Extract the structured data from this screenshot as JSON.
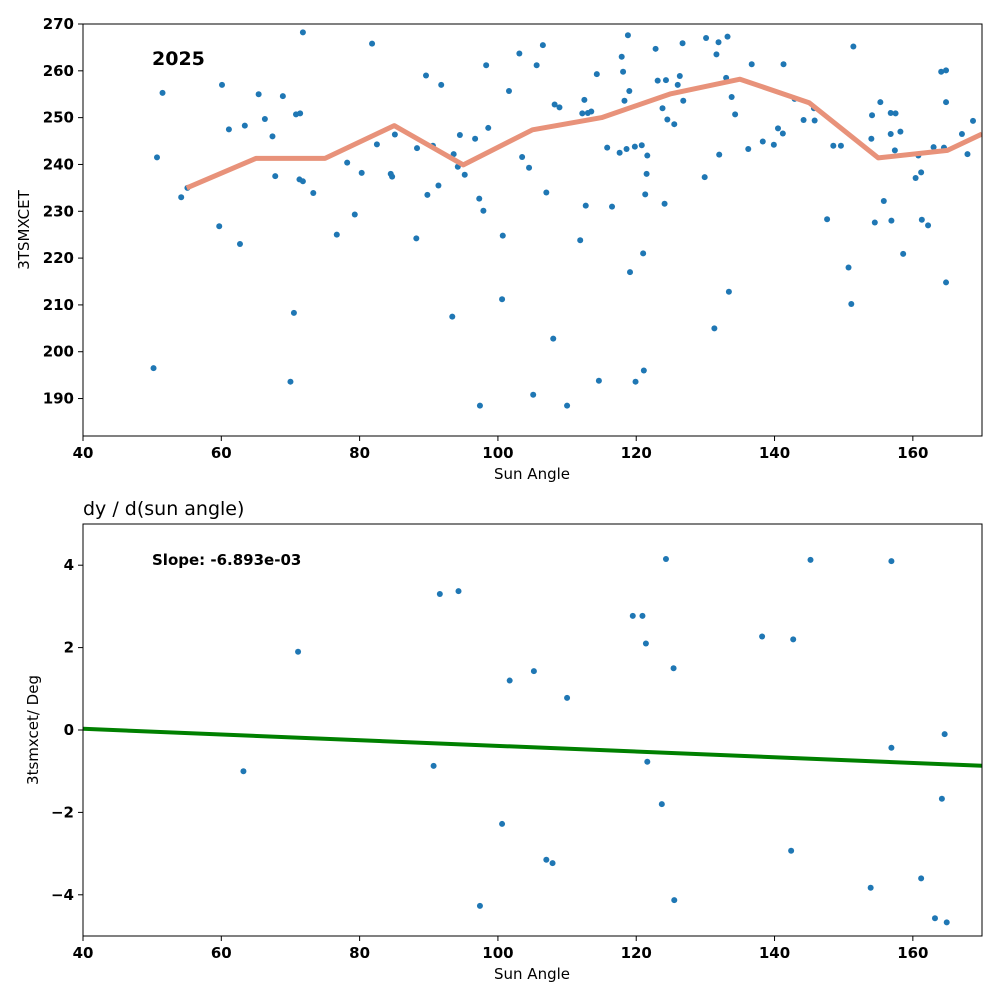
{
  "chart_data": [
    {
      "type": "scatter",
      "title": "",
      "annotation": "2025",
      "xlabel": "Sun Angle",
      "ylabel": "3TSMXCET",
      "xlim": [
        40,
        170
      ],
      "ylim": [
        182,
        270
      ],
      "xticks": [
        "40",
        "60",
        "80",
        "100",
        "120",
        "140",
        "160"
      ],
      "yticks": [
        "190",
        "200",
        "210",
        "220",
        "230",
        "240",
        "250",
        "260",
        "270"
      ],
      "colors": {
        "points": "#1f77b4",
        "trend": "#e8927a"
      },
      "series": [
        {
          "type": "scatter",
          "points": [
            [
              50.2,
              196.5
            ],
            [
              50.7,
              241.5
            ],
            [
              51.5,
              255.3
            ],
            [
              54.2,
              233
            ],
            [
              55.1,
              235
            ],
            [
              59.7,
              226.8
            ],
            [
              60.1,
              257
            ],
            [
              61.1,
              247.5
            ],
            [
              62.7,
              223
            ],
            [
              63.4,
              248.3
            ],
            [
              65.4,
              255
            ],
            [
              66.3,
              249.7
            ],
            [
              67.4,
              246
            ],
            [
              67.8,
              237.5
            ],
            [
              68.9,
              254.6
            ],
            [
              70,
              193.6
            ],
            [
              70.5,
              208.3
            ],
            [
              70.8,
              250.7
            ],
            [
              71.3,
              236.8
            ],
            [
              71.4,
              250.9
            ],
            [
              71.8,
              236.4
            ],
            [
              71.8,
              268.2
            ],
            [
              73.3,
              233.9
            ],
            [
              76.7,
              225
            ],
            [
              78.2,
              240.4
            ],
            [
              79.3,
              229.3
            ],
            [
              80.3,
              238.2
            ],
            [
              81.8,
              265.8
            ],
            [
              82.5,
              244.3
            ],
            [
              84.5,
              238
            ],
            [
              84.7,
              237.4
            ],
            [
              85.1,
              246.4
            ],
            [
              88.2,
              224.2
            ],
            [
              88.3,
              243.5
            ],
            [
              89.6,
              259
            ],
            [
              89.8,
              233.5
            ],
            [
              90.6,
              244
            ],
            [
              91.4,
              235.5
            ],
            [
              91.8,
              257
            ],
            [
              93.4,
              207.5
            ],
            [
              93.6,
              242.2
            ],
            [
              94.2,
              239.5
            ],
            [
              94.5,
              246.3
            ],
            [
              95.2,
              237.8
            ],
            [
              96.7,
              245.5
            ],
            [
              97.3,
              232.7
            ],
            [
              97.4,
              188.5
            ],
            [
              97.9,
              230.1
            ],
            [
              98.3,
              261.2
            ],
            [
              98.6,
              247.8
            ],
            [
              100.6,
              211.2
            ],
            [
              100.7,
              224.8
            ],
            [
              101.6,
              255.7
            ],
            [
              103.1,
              263.7
            ],
            [
              103.5,
              241.6
            ],
            [
              104.5,
              239.3
            ],
            [
              105.1,
              190.8
            ],
            [
              105.6,
              261.2
            ],
            [
              106.5,
              265.5
            ],
            [
              107,
              234
            ],
            [
              108,
              202.8
            ],
            [
              108.2,
              252.8
            ],
            [
              108.9,
              252.2
            ],
            [
              110,
              188.5
            ],
            [
              111.9,
              223.8
            ],
            [
              112.2,
              250.9
            ],
            [
              112.5,
              253.8
            ],
            [
              112.7,
              231.2
            ],
            [
              113,
              251
            ],
            [
              113.5,
              251.3
            ],
            [
              114.3,
              259.3
            ],
            [
              114.6,
              193.8
            ],
            [
              115.8,
              243.6
            ],
            [
              116.5,
              231
            ],
            [
              117.6,
              242.5
            ],
            [
              117.9,
              263
            ],
            [
              118.1,
              259.8
            ],
            [
              118.3,
              253.6
            ],
            [
              118.6,
              243.3
            ],
            [
              118.8,
              267.6
            ],
            [
              119,
              255.7
            ],
            [
              119.1,
              217
            ],
            [
              119.8,
              243.8
            ],
            [
              119.9,
              193.6
            ],
            [
              120.8,
              244.1
            ],
            [
              121,
              221
            ],
            [
              121.1,
              196
            ],
            [
              121.3,
              233.6
            ],
            [
              121.5,
              238
            ],
            [
              121.6,
              241.9
            ],
            [
              122.8,
              264.7
            ],
            [
              123.1,
              257.9
            ],
            [
              123.8,
              252
            ],
            [
              124.1,
              231.6
            ],
            [
              124.3,
              258
            ],
            [
              124.5,
              249.6
            ],
            [
              125.5,
              248.6
            ],
            [
              126,
              257
            ],
            [
              126.3,
              258.9
            ],
            [
              126.7,
              265.9
            ],
            [
              126.8,
              253.6
            ],
            [
              129.9,
              237.3
            ],
            [
              130.1,
              267
            ],
            [
              131.3,
              205
            ],
            [
              131.6,
              263.5
            ],
            [
              131.9,
              266.1
            ],
            [
              132,
              242.1
            ],
            [
              133,
              258.5
            ],
            [
              133.2,
              267.3
            ],
            [
              133.4,
              212.8
            ],
            [
              133.8,
              254.4
            ],
            [
              134.3,
              250.7
            ],
            [
              136.2,
              243.3
            ],
            [
              136.7,
              261.4
            ],
            [
              138.3,
              244.9
            ],
            [
              139.9,
              244.2
            ],
            [
              140.5,
              247.7
            ],
            [
              141.2,
              246.6
            ],
            [
              141.3,
              261.4
            ],
            [
              142.9,
              254
            ],
            [
              144.2,
              249.5
            ],
            [
              145.7,
              252
            ],
            [
              145.8,
              249.4
            ],
            [
              147.6,
              228.3
            ],
            [
              148.5,
              244
            ],
            [
              149.6,
              244
            ],
            [
              150.7,
              218
            ],
            [
              151.1,
              210.2
            ],
            [
              151.4,
              265.2
            ],
            [
              154,
              245.5
            ],
            [
              154.1,
              250.5
            ],
            [
              154.5,
              227.6
            ],
            [
              155.3,
              253.3
            ],
            [
              155.8,
              232.2
            ],
            [
              156.8,
              251
            ],
            [
              156.8,
              246.5
            ],
            [
              156.9,
              228
            ],
            [
              157.4,
              243
            ],
            [
              157.5,
              250.9
            ],
            [
              158.2,
              247
            ],
            [
              158.6,
              220.9
            ],
            [
              160.4,
              237.1
            ],
            [
              160.8,
              241.9
            ],
            [
              161.2,
              238.3
            ],
            [
              161.3,
              228.2
            ],
            [
              162.2,
              227
            ],
            [
              163,
              243.7
            ],
            [
              164.1,
              259.8
            ],
            [
              164.5,
              243.6
            ],
            [
              164.8,
              260.1
            ],
            [
              164.8,
              253.3
            ],
            [
              164.8,
              214.8
            ],
            [
              167.1,
              246.5
            ],
            [
              167.9,
              242.2
            ],
            [
              168.7,
              249.3
            ]
          ]
        },
        {
          "type": "line",
          "points": [
            [
              55,
              235
            ],
            [
              65,
              241.3
            ],
            [
              75,
              241.3
            ],
            [
              85,
              248.3
            ],
            [
              95,
              239.9
            ],
            [
              105,
              247.4
            ],
            [
              115,
              250
            ],
            [
              125,
              255.1
            ],
            [
              135,
              258.2
            ],
            [
              145,
              253.2
            ],
            [
              155,
              241.4
            ],
            [
              165,
              243
            ],
            [
              170,
              246.5
            ]
          ]
        }
      ]
    },
    {
      "type": "scatter",
      "title": "dy / d(sun angle)",
      "annotation": "Slope: -6.893e-03",
      "xlabel": "Sun Angle",
      "ylabel": "3tsmxcet/ Deg",
      "xlim": [
        40,
        170
      ],
      "ylim": [
        -5,
        5
      ],
      "xticks": [
        "40",
        "60",
        "80",
        "100",
        "120",
        "140",
        "160"
      ],
      "yticks": [
        "−4",
        "−2",
        "0",
        "2",
        "4"
      ],
      "colors": {
        "points": "#1f77b4",
        "fit": "#008000"
      },
      "series": [
        {
          "type": "scatter",
          "points": [
            [
              63.2,
              -1
            ],
            [
              71.1,
              1.9
            ],
            [
              90.7,
              -0.87
            ],
            [
              91.6,
              3.3
            ],
            [
              94.3,
              3.37
            ],
            [
              97.4,
              -4.27
            ],
            [
              100.6,
              -2.28
            ],
            [
              101.7,
              1.2
            ],
            [
              105.2,
              1.43
            ],
            [
              107,
              -3.15
            ],
            [
              107.9,
              -3.23
            ],
            [
              110,
              0.78
            ],
            [
              119.5,
              2.77
            ],
            [
              120.9,
              2.77
            ],
            [
              121.4,
              2.1
            ],
            [
              121.6,
              -0.77
            ],
            [
              123.7,
              -1.8
            ],
            [
              124.3,
              4.15
            ],
            [
              125.4,
              1.5
            ],
            [
              125.5,
              -4.13
            ],
            [
              138.2,
              2.27
            ],
            [
              142.4,
              -2.93
            ],
            [
              142.7,
              2.2
            ],
            [
              145.2,
              4.13
            ],
            [
              153.9,
              -3.83
            ],
            [
              156.9,
              4.1
            ],
            [
              156.9,
              -0.43
            ],
            [
              161.2,
              -3.6
            ],
            [
              163.2,
              -4.57
            ],
            [
              164.2,
              -1.67
            ],
            [
              164.6,
              -0.1
            ],
            [
              164.9,
              -4.67
            ]
          ]
        },
        {
          "type": "line",
          "points": [
            [
              40,
              0.03
            ],
            [
              170,
              -0.87
            ]
          ]
        }
      ]
    }
  ]
}
